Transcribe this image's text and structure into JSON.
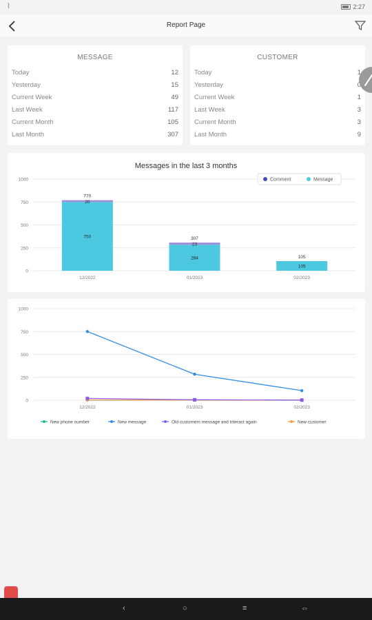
{
  "status_bar": {
    "time": "2:27",
    "left_icon": "wifi-off-icon",
    "battery_icon": "battery-icon"
  },
  "header": {
    "title": "Report Page",
    "back_icon": "chevron-left-icon",
    "filter_icon": "filter-icon"
  },
  "message_stats": {
    "title": "MESSAGE",
    "rows": [
      {
        "label": "Today",
        "value": "12"
      },
      {
        "label": "Yesterday",
        "value": "15"
      },
      {
        "label": "Current Week",
        "value": "49"
      },
      {
        "label": "Last Week",
        "value": "117"
      },
      {
        "label": "Current Month",
        "value": "105"
      },
      {
        "label": "Last Month",
        "value": "307"
      }
    ]
  },
  "customer_stats": {
    "title": "CUSTOMER",
    "rows": [
      {
        "label": "Today",
        "value": "1"
      },
      {
        "label": "Yesterday",
        "value": "0"
      },
      {
        "label": "Current Week",
        "value": "1"
      },
      {
        "label": "Last Week",
        "value": "3"
      },
      {
        "label": "Current Month",
        "value": "3"
      },
      {
        "label": "Last Month",
        "value": "9"
      }
    ]
  },
  "colors": {
    "comment": "#3f51b5",
    "message": "#4cc9e0",
    "comment_bar": "#9c8fd8",
    "new_phone_number": "#1abc9c",
    "new_message": "#2f8fe8",
    "old_customers": "#8e5be8",
    "new_customer": "#f39c3d",
    "grid": "#e8e8e8"
  },
  "chart_data": [
    {
      "type": "bar",
      "title": "Messages in the last 3 months",
      "categories": [
        "12/2022",
        "01/2023",
        "02/2023"
      ],
      "series": [
        {
          "name": "Message",
          "values": [
            750,
            284,
            105
          ]
        },
        {
          "name": "Comment",
          "values": [
            20,
            23,
            0
          ]
        }
      ],
      "totals": [
        "770",
        "307",
        "105"
      ],
      "segment_labels": [
        {
          "message": "750",
          "comment": "20"
        },
        {
          "message": "284",
          "comment": "23"
        },
        {
          "message": "105",
          "comment": ""
        }
      ],
      "yticks": [
        "0",
        "250",
        "500",
        "750",
        "1000"
      ],
      "ylim": [
        0,
        1000
      ],
      "legend": "top-right",
      "grid": true
    },
    {
      "type": "line",
      "title": "",
      "categories": [
        "12/2022",
        "01/2023",
        "02/2023"
      ],
      "series": [
        {
          "name": "New phone number",
          "values": [
            1,
            2,
            0
          ]
        },
        {
          "name": "New message",
          "values": [
            750,
            284,
            105
          ]
        },
        {
          "name": "Old customers message and interact again",
          "values": [
            20,
            5,
            2
          ]
        },
        {
          "name": "New customer",
          "values": [
            3,
            2,
            1
          ]
        }
      ],
      "yticks": [
        "0",
        "250",
        "500",
        "750",
        "1000"
      ],
      "ylim": [
        0,
        1000
      ],
      "legend": "bottom",
      "grid": true
    }
  ],
  "nav": {
    "back": "‹",
    "home": "○",
    "menu": "≡",
    "extra": "⇔"
  }
}
